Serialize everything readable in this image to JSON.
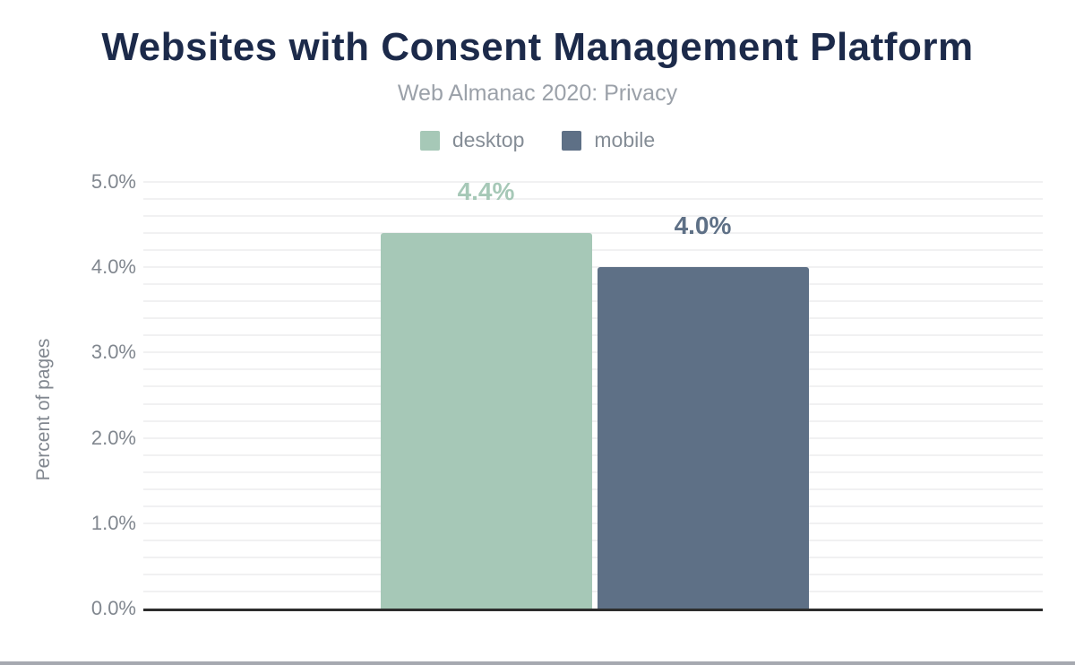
{
  "colors": {
    "title": "#1c2a4a",
    "subtitle": "#9ba1a9",
    "legend-text": "#858d96",
    "tick": "#81878f",
    "grid": "#f1f1f2",
    "axis": "#2d2d2d",
    "footer": "#a6a9b0",
    "desktop": "#a6c8b7",
    "mobile": "#5e7086"
  },
  "chart_data": {
    "type": "bar",
    "title": "Websites with Consent Management Platform",
    "subtitle": "Web Almanac 2020: Privacy",
    "ylabel": "Percent of pages",
    "ylim": [
      0,
      5
    ],
    "ytick_labels": [
      "5.0%",
      "4.0%",
      "3.0%",
      "2.0%",
      "1.0%",
      "0.0%"
    ],
    "ytick_values": [
      5,
      4,
      3,
      2,
      1,
      0
    ],
    "minor_grid_step": 0.2,
    "grid": true,
    "legend_position": "top",
    "series": [
      {
        "name": "desktop",
        "value": 4.4,
        "label": "4.4%",
        "color": "#a6c8b7"
      },
      {
        "name": "mobile",
        "value": 4.0,
        "label": "4.0%",
        "color": "#5e7086"
      }
    ]
  }
}
